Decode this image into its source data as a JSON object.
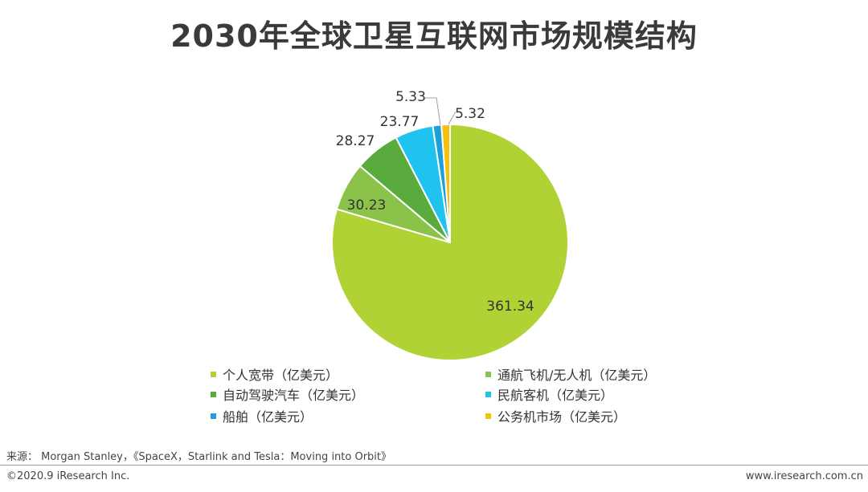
{
  "chart_data": {
    "type": "pie",
    "title": "2030年全球卫星互联网市场规模结构",
    "categories": [
      "个人宽带（亿美元）",
      "通航飞机/无人机（亿美元）",
      "自动驾驶汽车（亿美元）",
      "民航客机（亿美元）",
      "船舶（亿美元）",
      "公务机市场（亿美元）"
    ],
    "values": [
      361.34,
      30.23,
      28.27,
      23.77,
      5.33,
      5.32
    ],
    "labels": [
      "361.34",
      "30.23",
      "28.27",
      "23.77",
      "5.33",
      "5.32"
    ],
    "colors": [
      "#b1d235",
      "#8bc34a",
      "#5aab3e",
      "#1ec3ef",
      "#1e9fd8",
      "#f2c20c"
    ],
    "legend_position": "bottom"
  },
  "source": "来源： Morgan Stanley，《SpaceX，Starlink and Tesla：Moving into Orbit》",
  "footer": {
    "left": "©2020.9 iResearch Inc.",
    "right": "www.iresearch.com.cn"
  }
}
